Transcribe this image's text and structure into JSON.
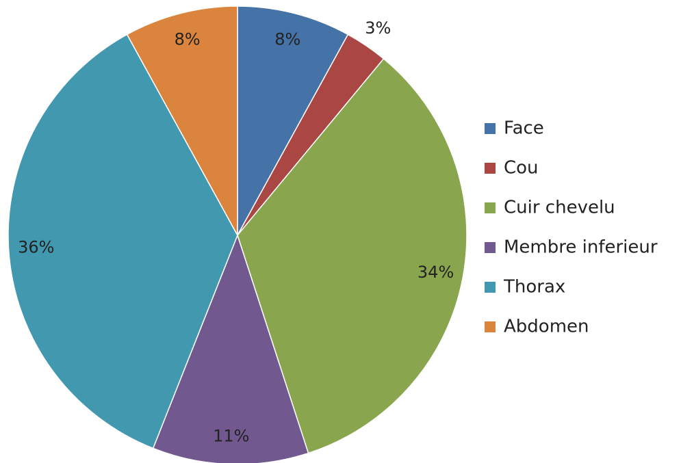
{
  "chart_data": {
    "type": "pie",
    "categories": [
      "Face",
      "Cou",
      "Cuir chevelu",
      "Membre inferieur",
      "Thorax",
      "Abdomen"
    ],
    "values": [
      8,
      3,
      34,
      11,
      36,
      8
    ],
    "value_labels": [
      "8%",
      "3%",
      "34%",
      "11%",
      "36%",
      "8%"
    ],
    "colors": [
      "#4572a7",
      "#aa4643",
      "#89a54e",
      "#71588f",
      "#4198af",
      "#db843d"
    ],
    "legend": "right"
  }
}
